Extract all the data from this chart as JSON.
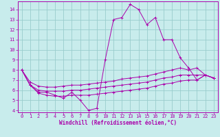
{
  "bg_color": "#c8ecec",
  "line_color": "#aa00aa",
  "grid_color": "#99cccc",
  "xlabel": "Windchill (Refroidissement éolien,°C)",
  "xlim": [
    -0.5,
    23.5
  ],
  "ylim": [
    3.8,
    14.8
  ],
  "yticks": [
    4,
    5,
    6,
    7,
    8,
    9,
    10,
    11,
    12,
    13,
    14
  ],
  "xticks": [
    0,
    1,
    2,
    3,
    4,
    5,
    6,
    7,
    8,
    9,
    10,
    11,
    12,
    13,
    14,
    15,
    16,
    17,
    18,
    19,
    20,
    21,
    22,
    23
  ],
  "lines": [
    {
      "x": [
        0,
        1,
        2,
        3,
        4,
        5,
        6,
        7,
        8,
        9,
        10,
        11,
        12,
        13,
        14,
        15,
        16,
        17,
        18,
        19,
        20,
        21,
        22,
        23
      ],
      "y": [
        8.0,
        6.5,
        5.8,
        5.8,
        5.5,
        5.2,
        5.8,
        5.0,
        4.0,
        4.2,
        9.0,
        13.0,
        13.2,
        14.5,
        14.0,
        12.5,
        13.2,
        11.0,
        11.0,
        9.2,
        8.2,
        7.0,
        7.5,
        7.2
      ]
    },
    {
      "x": [
        0,
        1,
        2,
        3,
        4,
        5,
        6,
        7,
        8,
        9,
        10,
        11,
        12,
        13,
        14,
        15,
        16,
        17,
        18,
        19,
        20,
        21,
        22,
        23
      ],
      "y": [
        8.0,
        6.8,
        6.4,
        6.3,
        6.3,
        6.4,
        6.5,
        6.5,
        6.6,
        6.7,
        6.8,
        6.9,
        7.1,
        7.2,
        7.3,
        7.4,
        7.6,
        7.8,
        8.0,
        8.2,
        8.0,
        8.2,
        7.5,
        7.2
      ]
    },
    {
      "x": [
        0,
        1,
        2,
        3,
        4,
        5,
        6,
        7,
        8,
        9,
        10,
        11,
        12,
        13,
        14,
        15,
        16,
        17,
        18,
        19,
        20,
        21,
        22,
        23
      ],
      "y": [
        8.0,
        6.5,
        6.0,
        5.9,
        5.9,
        5.9,
        6.0,
        6.0,
        6.1,
        6.2,
        6.3,
        6.4,
        6.5,
        6.6,
        6.7,
        6.8,
        7.0,
        7.2,
        7.3,
        7.5,
        7.5,
        7.5,
        7.5,
        7.2
      ]
    },
    {
      "x": [
        0,
        1,
        2,
        3,
        4,
        5,
        6,
        7,
        8,
        9,
        10,
        11,
        12,
        13,
        14,
        15,
        16,
        17,
        18,
        19,
        20,
        21,
        22,
        23
      ],
      "y": [
        8.0,
        6.5,
        5.7,
        5.5,
        5.4,
        5.4,
        5.5,
        5.5,
        5.5,
        5.6,
        5.7,
        5.8,
        5.9,
        6.0,
        6.1,
        6.2,
        6.4,
        6.6,
        6.7,
        6.9,
        7.0,
        7.0,
        7.5,
        7.2
      ]
    }
  ]
}
